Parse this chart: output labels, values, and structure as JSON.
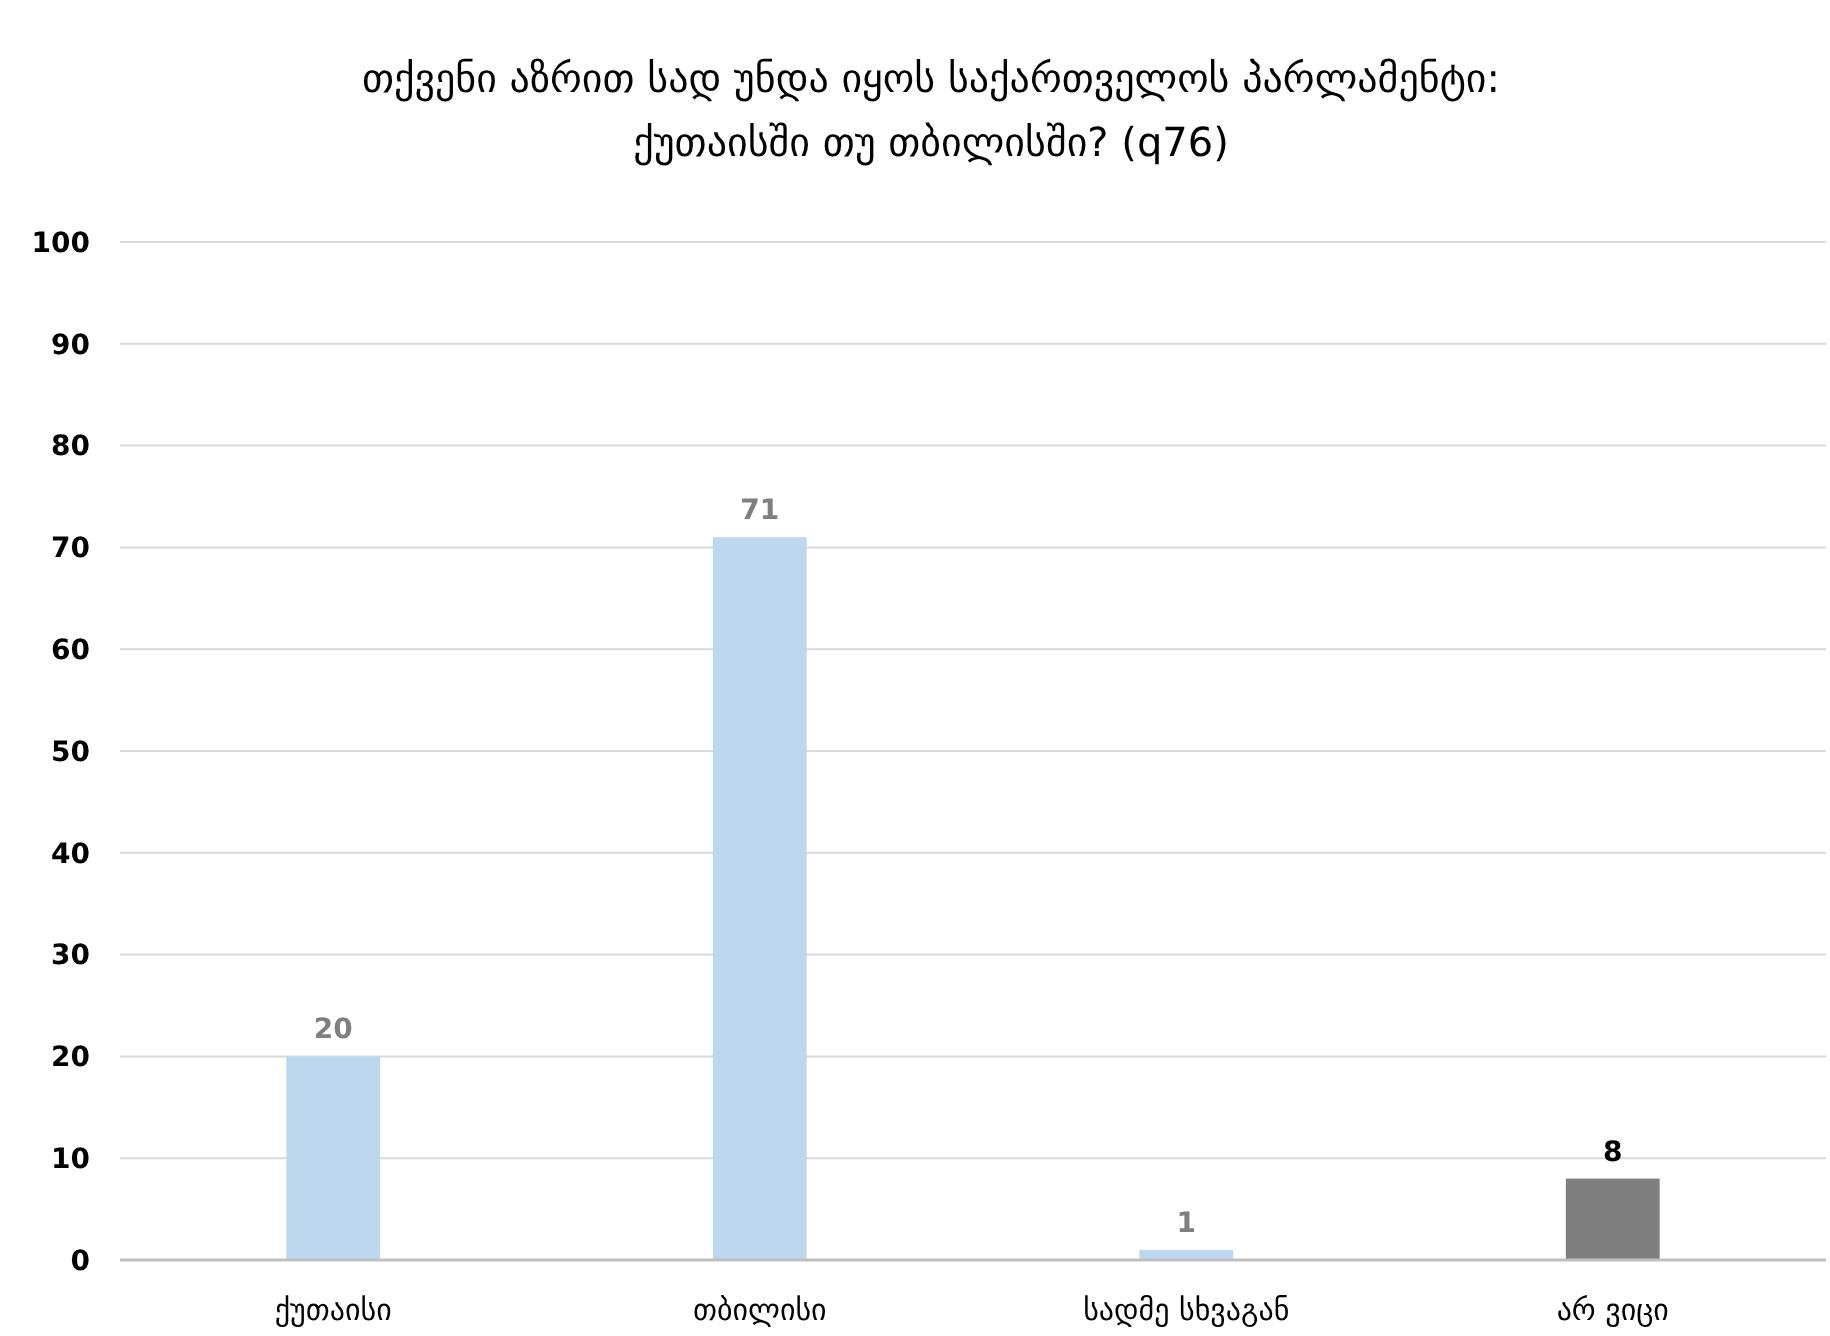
{
  "chart_data": {
    "type": "bar",
    "title": "თქვენი აზრით სად უნდა იყოს საქართველოს პარლამენტი:\nქუთაისში თუ თბილისში? (q76)",
    "categories": [
      "ქუთაისი",
      "თბილისი",
      "სადმე სხვაგან",
      "არ ვიცი"
    ],
    "values": [
      20,
      71,
      1,
      8
    ],
    "colors": [
      "#bdd7ee",
      "#bdd7ee",
      "#bdd7ee",
      "#7f7f7f"
    ],
    "ylim": [
      0,
      100
    ],
    "yticks": [
      0,
      10,
      20,
      30,
      40,
      50,
      60,
      70,
      80,
      90,
      100
    ],
    "grid": "y",
    "data_labels": true
  }
}
